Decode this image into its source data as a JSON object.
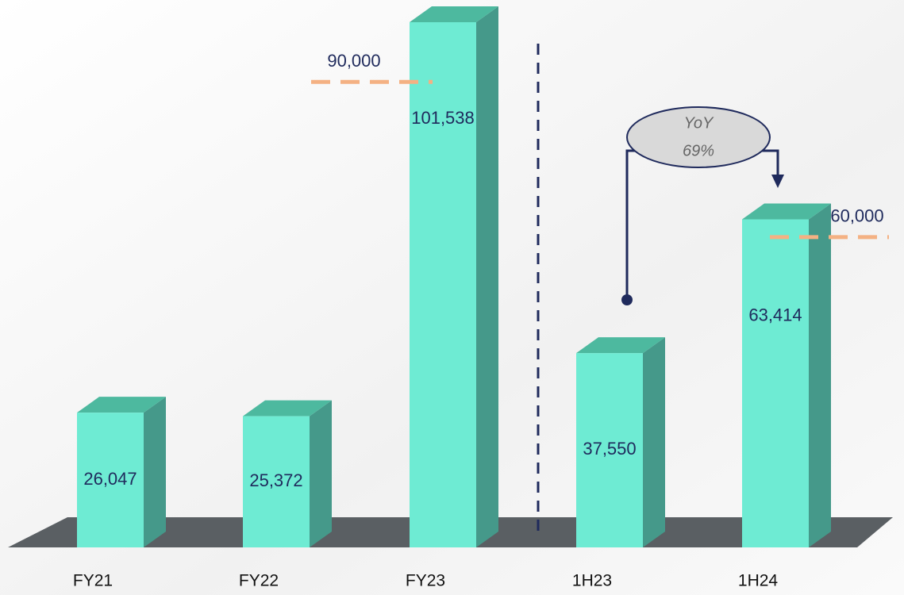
{
  "chart_data": {
    "type": "bar3d",
    "categories": [
      "FY21",
      "FY22",
      "FY23",
      "1H23",
      "1H24"
    ],
    "values": [
      26047,
      25372,
      101538,
      37550,
      63414
    ],
    "value_labels": [
      "26,047",
      "25,372",
      "101,538",
      "37,550",
      "63,414"
    ],
    "color": "#6eebd3",
    "targets": [
      {
        "category": "FY23",
        "value": 90000,
        "label": "90,000",
        "color": "#f4b183"
      },
      {
        "category": "1H24",
        "value": 60000,
        "label": "60,000",
        "color": "#f4b183"
      }
    ],
    "annotation": {
      "text": "YoY",
      "value": 69,
      "label": "69%"
    }
  }
}
